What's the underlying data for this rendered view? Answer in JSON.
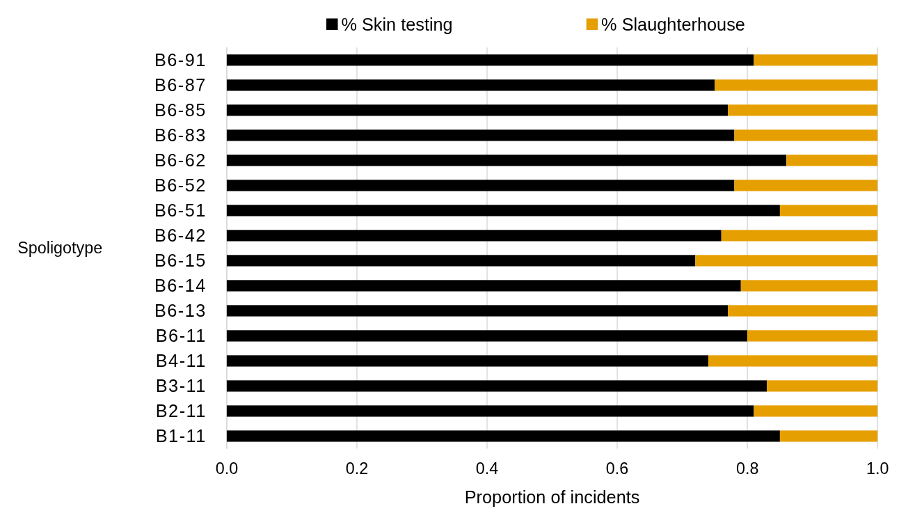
{
  "chart_data": {
    "type": "bar",
    "orientation": "horizontal",
    "stacked": true,
    "xlabel": "Proportion of incidents",
    "ylabel": "Spoligotype",
    "categories": [
      "B6-91",
      "B6-87",
      "B6-85",
      "B6-83",
      "B6-62",
      "B6-52",
      "B6-51",
      "B6-42",
      "B6-15",
      "B6-14",
      "B6-13",
      "B6-11",
      "B4-11",
      "B3-11",
      "B2-11",
      "B1-11"
    ],
    "series": [
      {
        "name": "% Skin testing",
        "color": "#000000",
        "values": [
          0.81,
          0.75,
          0.77,
          0.78,
          0.86,
          0.78,
          0.85,
          0.76,
          0.72,
          0.79,
          0.77,
          0.8,
          0.74,
          0.83,
          0.81,
          0.85
        ]
      },
      {
        "name": "% Slaughterhouse",
        "color": "#e69f00",
        "values": [
          0.19,
          0.25,
          0.23,
          0.22,
          0.14,
          0.22,
          0.15,
          0.24,
          0.28,
          0.21,
          0.23,
          0.2,
          0.26,
          0.17,
          0.19,
          0.15
        ]
      }
    ],
    "xlim": [
      0,
      1
    ],
    "xticks": [
      {
        "value": 0,
        "label": "0.0"
      },
      {
        "value": 0.2,
        "label": "0.2"
      },
      {
        "value": 0.4,
        "label": "0.4"
      },
      {
        "value": 0.6,
        "label": "0.6"
      },
      {
        "value": 0.8,
        "label": "0.8"
      },
      {
        "value": 1,
        "label": "1.0"
      }
    ],
    "grid": "x",
    "legend": "top"
  }
}
